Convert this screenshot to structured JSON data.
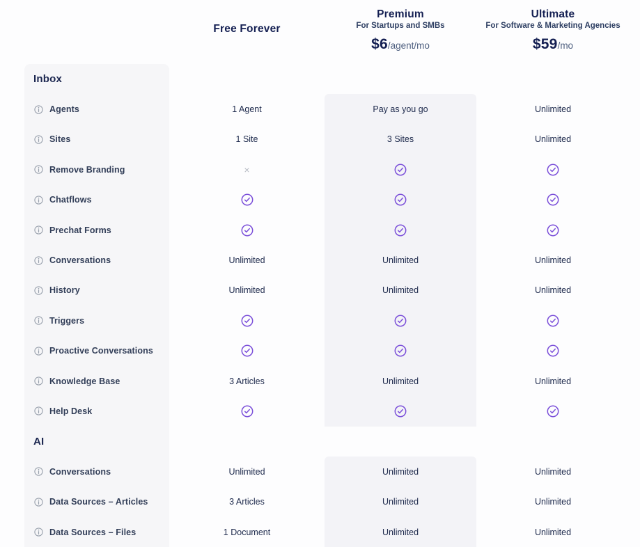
{
  "plans": [
    {
      "name": "Free Forever",
      "subtitle": "",
      "price": "",
      "suffix": ""
    },
    {
      "name": "Premium",
      "subtitle": "For Startups and SMBs",
      "price": "$6",
      "suffix": "/agent/mo",
      "highlighted": true
    },
    {
      "name": "Ultimate",
      "subtitle": "For Software & Marketing Agencies",
      "price": "$59",
      "suffix": "/mo"
    }
  ],
  "sections": [
    {
      "title": "Inbox",
      "rows": [
        {
          "label": "Agents",
          "values": [
            {
              "text": "1 Agent"
            },
            {
              "text": "Pay as you go"
            },
            {
              "text": "Unlimited"
            }
          ]
        },
        {
          "label": "Sites",
          "values": [
            {
              "text": "1 Site"
            },
            {
              "text": "3 Sites"
            },
            {
              "text": "Unlimited"
            }
          ]
        },
        {
          "label": "Remove Branding",
          "values": [
            {
              "icon": "cross"
            },
            {
              "icon": "check"
            },
            {
              "icon": "check"
            }
          ]
        },
        {
          "label": "Chatflows",
          "values": [
            {
              "icon": "check"
            },
            {
              "icon": "check"
            },
            {
              "icon": "check"
            }
          ]
        },
        {
          "label": "Prechat Forms",
          "values": [
            {
              "icon": "check"
            },
            {
              "icon": "check"
            },
            {
              "icon": "check"
            }
          ]
        },
        {
          "label": "Conversations",
          "values": [
            {
              "text": "Unlimited"
            },
            {
              "text": "Unlimited"
            },
            {
              "text": "Unlimited"
            }
          ]
        },
        {
          "label": "History",
          "values": [
            {
              "text": "Unlimited"
            },
            {
              "text": "Unlimited"
            },
            {
              "text": "Unlimited"
            }
          ]
        },
        {
          "label": "Triggers",
          "values": [
            {
              "icon": "check"
            },
            {
              "icon": "check"
            },
            {
              "icon": "check"
            }
          ]
        },
        {
          "label": "Proactive Conversations",
          "values": [
            {
              "icon": "check"
            },
            {
              "icon": "check"
            },
            {
              "icon": "check"
            }
          ]
        },
        {
          "label": "Knowledge Base",
          "values": [
            {
              "text": "3 Articles"
            },
            {
              "text": "Unlimited"
            },
            {
              "text": "Unlimited"
            }
          ]
        },
        {
          "label": "Help Desk",
          "values": [
            {
              "icon": "check"
            },
            {
              "icon": "check"
            },
            {
              "icon": "check"
            }
          ]
        }
      ]
    },
    {
      "title": "AI",
      "rows": [
        {
          "label": "Conversations",
          "values": [
            {
              "text": "Unlimited"
            },
            {
              "text": "Unlimited"
            },
            {
              "text": "Unlimited"
            }
          ]
        },
        {
          "label": "Data Sources – Articles",
          "values": [
            {
              "text": "3 Articles"
            },
            {
              "text": "Unlimited"
            },
            {
              "text": "Unlimited"
            }
          ]
        },
        {
          "label": "Data Sources – Files",
          "values": [
            {
              "text": "1 Document"
            },
            {
              "text": "Unlimited"
            },
            {
              "text": "Unlimited"
            }
          ]
        }
      ]
    }
  ],
  "icons": {
    "feature_info": "info-icon",
    "included": "check-circle-icon",
    "not_included": "cross-icon"
  },
  "colors": {
    "accent_purple": "#7a4ed9",
    "navy": "#141f52",
    "sidebar_bg": "#f6f6f8",
    "highlight_band_bg": "#f3f3f7",
    "cross_gray": "#b7bbc4",
    "info_gray": "#98a0ac"
  }
}
